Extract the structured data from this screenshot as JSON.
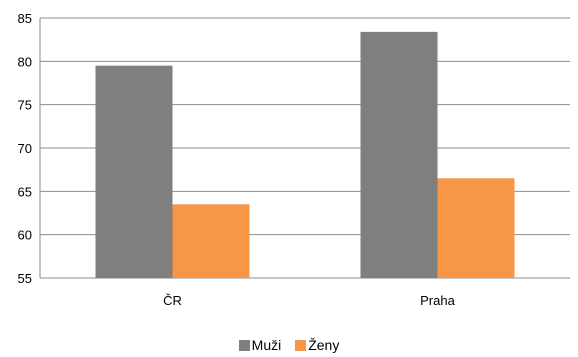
{
  "chart_data": {
    "type": "bar",
    "title": "",
    "xlabel": "",
    "ylabel": "",
    "categories": [
      "ČR",
      "Praha"
    ],
    "series": [
      {
        "name": "Muži",
        "values": [
          79.5,
          83.4
        ],
        "color": "#7f7f7f"
      },
      {
        "name": "Ženy",
        "values": [
          63.5,
          66.5
        ],
        "color": "#f79646"
      }
    ],
    "ylim": [
      55,
      85
    ],
    "yticks": [
      55,
      60,
      65,
      70,
      75,
      80,
      85
    ],
    "grid": true,
    "legend_position": "bottom",
    "colors": {
      "grid": "#8c8c8c",
      "axis": "#8c8c8c",
      "background": "#ffffff"
    }
  }
}
